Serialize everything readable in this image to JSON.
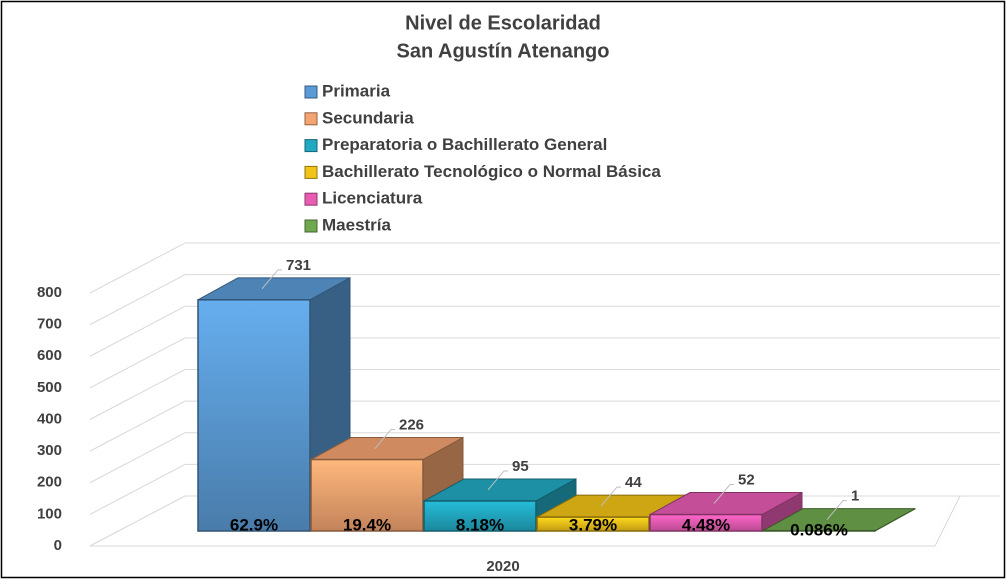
{
  "chart_data": {
    "type": "bar3d",
    "title": "Nivel de Escolaridad",
    "subtitle": "San Agustín Atenango",
    "categories": [
      "2020"
    ],
    "series": [
      {
        "name": "Primaria",
        "color": "#5b9bd5",
        "values": [
          731
        ],
        "share_labels": [
          "62.9%"
        ]
      },
      {
        "name": "Secundaria",
        "color": "#f4a470",
        "values": [
          226
        ],
        "share_labels": [
          "19.4%"
        ]
      },
      {
        "name": "Preparatoria o Bachillerato General",
        "color": "#22a9c2",
        "values": [
          95
        ],
        "share_labels": [
          "8.18%"
        ]
      },
      {
        "name": "Bachillerato Tecnológico o Normal Básica",
        "color": "#f2c318",
        "values": [
          44
        ],
        "share_labels": [
          "3.79%"
        ]
      },
      {
        "name": "Licenciatura",
        "color": "#e85cb4",
        "values": [
          52
        ],
        "share_labels": [
          "4.48%"
        ]
      },
      {
        "name": "Maestría",
        "color": "#70a84f",
        "values": [
          1
        ],
        "share_labels": [
          "0.086%"
        ]
      }
    ],
    "ylim": [
      0,
      800
    ],
    "yticks": [
      0,
      100,
      200,
      300,
      400,
      500,
      600,
      700,
      800
    ],
    "grid": true
  }
}
